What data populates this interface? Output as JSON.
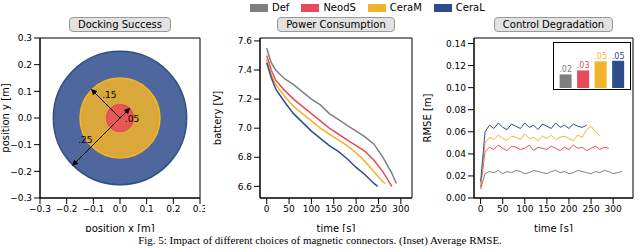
{
  "caption": "Fig. 5: Impact of different choices of magnetic connectors. (Inset) Average RMSE.",
  "chart_data": [
    {
      "type": "circle",
      "title": "Docking Success",
      "x_label": "position x [m]",
      "y_label": "position y [m]",
      "xlim": [
        -0.3,
        0.3
      ],
      "ylim": [
        -0.3,
        0.3
      ],
      "xticks": [
        {
          "value": -0.3,
          "label": "−0.3"
        },
        {
          "value": -0.2,
          "label": "−0.2"
        },
        {
          "value": -0.1,
          "label": "−0.1"
        },
        {
          "value": 0,
          "label": "0.0"
        },
        0.1,
        0.2,
        0.3
      ],
      "yticks": [
        {
          "value": -0.3,
          "label": "−0.3"
        },
        {
          "value": -0.2,
          "label": "−0.2"
        },
        {
          "value": -0.1,
          "label": "−0.1"
        },
        {
          "value": 0,
          "label": "0.0"
        },
        0.1,
        0.2,
        0.3
      ],
      "series": [
        {
          "name": "CeraL",
          "color": "#2f4c8c",
          "radius": 0.25,
          "label": ".25",
          "center": [
            0,
            0
          ]
        },
        {
          "name": "CeraM",
          "color": "#f3b32a",
          "radius": 0.15,
          "label": ".15",
          "center": [
            0,
            0
          ]
        },
        {
          "name": "NeodS",
          "color": "#e84a5a",
          "radius": 0.05,
          "label": ".05",
          "center": [
            0,
            0
          ]
        }
      ]
    },
    {
      "type": "line",
      "title": "Power Consumption",
      "x_label": "time [s]",
      "y_label": "battery [V]",
      "legend": "top",
      "xlim": [
        -15,
        325
      ],
      "ylim": [
        6.52,
        7.62
      ],
      "xticks": [
        0,
        50,
        100,
        150,
        200,
        250,
        300
      ],
      "yticks": [
        6.6,
        6.8,
        {
          "value": 7,
          "label": "7.0"
        },
        7.2,
        7.4,
        7.6
      ],
      "series": [
        {
          "name": "Def",
          "color": "#7f7f7f",
          "x": [
            0,
            10,
            20,
            40,
            60,
            80,
            100,
            120,
            140,
            160,
            180,
            200,
            220,
            240,
            260,
            280,
            290
          ],
          "values": [
            7.55,
            7.45,
            7.4,
            7.34,
            7.3,
            7.25,
            7.2,
            7.16,
            7.1,
            7.06,
            7.02,
            6.98,
            6.94,
            6.89,
            6.8,
            6.69,
            6.62
          ]
        },
        {
          "name": "NeodS",
          "color": "#e84a5a",
          "x": [
            0,
            10,
            20,
            40,
            60,
            80,
            100,
            120,
            140,
            160,
            180,
            200,
            220,
            240,
            260,
            280
          ],
          "values": [
            7.5,
            7.4,
            7.33,
            7.26,
            7.2,
            7.15,
            7.1,
            7.05,
            7.0,
            6.96,
            6.92,
            6.88,
            6.84,
            6.78,
            6.7,
            6.6
          ]
        },
        {
          "name": "CeraM",
          "color": "#f3b32a",
          "x": [
            0,
            10,
            20,
            40,
            60,
            80,
            100,
            120,
            140,
            160,
            180,
            200,
            220,
            240,
            260,
            265
          ],
          "values": [
            7.47,
            7.37,
            7.3,
            7.22,
            7.15,
            7.1,
            7.05,
            7.0,
            6.96,
            6.92,
            6.88,
            6.83,
            6.77,
            6.7,
            6.63,
            6.62
          ]
        },
        {
          "name": "CeraL",
          "color": "#2f4c8c",
          "x": [
            0,
            10,
            20,
            40,
            60,
            80,
            100,
            120,
            140,
            160,
            180,
            200,
            220,
            240,
            248
          ],
          "values": [
            7.45,
            7.35,
            7.27,
            7.18,
            7.1,
            7.04,
            6.98,
            6.93,
            6.88,
            6.84,
            6.79,
            6.73,
            6.68,
            6.62,
            6.6
          ]
        }
      ]
    },
    {
      "type": "line",
      "title": "Control Degradation",
      "x_label": "time [s]",
      "y_label": "RMSE [m]",
      "xlim": [
        -15,
        345
      ],
      "ylim": [
        0,
        0.145
      ],
      "xticks": [
        0,
        50,
        100,
        150,
        200,
        250,
        300
      ],
      "yticks": [
        {
          "value": 0,
          "label": "0.00"
        },
        0.02,
        0.04,
        0.06,
        0.08,
        {
          "value": 0.1,
          "label": "0.10"
        },
        0.12,
        0.14
      ],
      "series": [
        {
          "name": "Def",
          "color": "#7f7f7f",
          "x": [
            0,
            10,
            20,
            30,
            40,
            50,
            60,
            70,
            80,
            90,
            100,
            110,
            120,
            130,
            140,
            150,
            160,
            170,
            180,
            190,
            200,
            210,
            220,
            230,
            240,
            250,
            260,
            270,
            280,
            290,
            300,
            310,
            320
          ],
          "values": [
            0.008,
            0.022,
            0.024,
            0.023,
            0.025,
            0.022,
            0.024,
            0.023,
            0.025,
            0.024,
            0.022,
            0.023,
            0.025,
            0.024,
            0.023,
            0.022,
            0.024,
            0.025,
            0.023,
            0.024,
            0.022,
            0.023,
            0.025,
            0.024,
            0.023,
            0.022,
            0.024,
            0.023,
            0.025,
            0.024,
            0.022,
            0.023,
            0.024
          ]
        },
        {
          "name": "NeodS",
          "color": "#e84a5a",
          "x": [
            0,
            10,
            20,
            30,
            40,
            50,
            60,
            70,
            80,
            90,
            100,
            110,
            120,
            130,
            140,
            150,
            160,
            170,
            180,
            190,
            200,
            210,
            220,
            230,
            240,
            250,
            260,
            270,
            280,
            290
          ],
          "values": [
            0.01,
            0.042,
            0.046,
            0.044,
            0.048,
            0.045,
            0.043,
            0.047,
            0.046,
            0.044,
            0.045,
            0.048,
            0.043,
            0.046,
            0.045,
            0.044,
            0.047,
            0.045,
            0.043,
            0.046,
            0.044,
            0.048,
            0.045,
            0.046,
            0.043,
            0.045,
            0.047,
            0.044,
            0.046,
            0.045
          ]
        },
        {
          "name": "CeraM",
          "color": "#f3b32a",
          "x": [
            0,
            10,
            20,
            30,
            40,
            50,
            60,
            70,
            80,
            90,
            100,
            110,
            120,
            130,
            140,
            150,
            160,
            170,
            180,
            190,
            200,
            210,
            220,
            230,
            240,
            250,
            260,
            270
          ],
          "values": [
            0.012,
            0.05,
            0.055,
            0.053,
            0.057,
            0.054,
            0.052,
            0.056,
            0.055,
            0.053,
            0.058,
            0.054,
            0.055,
            0.052,
            0.056,
            0.054,
            0.057,
            0.053,
            0.055,
            0.056,
            0.054,
            0.052,
            0.057,
            0.055,
            0.062,
            0.065,
            0.06,
            0.056
          ]
        },
        {
          "name": "CeraL",
          "color": "#2f4c8c",
          "x": [
            0,
            10,
            20,
            30,
            40,
            50,
            60,
            70,
            80,
            90,
            100,
            110,
            120,
            130,
            140,
            150,
            160,
            170,
            180,
            190,
            200,
            210,
            220,
            230,
            240
          ],
          "values": [
            0.015,
            0.06,
            0.066,
            0.063,
            0.068,
            0.064,
            0.062,
            0.067,
            0.065,
            0.063,
            0.068,
            0.064,
            0.066,
            0.062,
            0.067,
            0.065,
            0.063,
            0.068,
            0.064,
            0.066,
            0.063,
            0.067,
            0.065,
            0.064,
            0.066
          ]
        }
      ]
    },
    {
      "type": "bar",
      "categories": [
        "Def",
        "NeodS",
        "CeraM",
        "CeraL"
      ],
      "values": [
        0.024,
        0.031,
        0.047,
        0.048
      ],
      "value_labels": [
        ".02",
        ".03",
        ".05",
        ".05"
      ],
      "colors": [
        "#7f7f7f",
        "#e84a5a",
        "#f3b32a",
        "#2f4c8c"
      ],
      "ylim": [
        0,
        0.06
      ],
      "tick_labels": false,
      "data_labels": true
    }
  ]
}
